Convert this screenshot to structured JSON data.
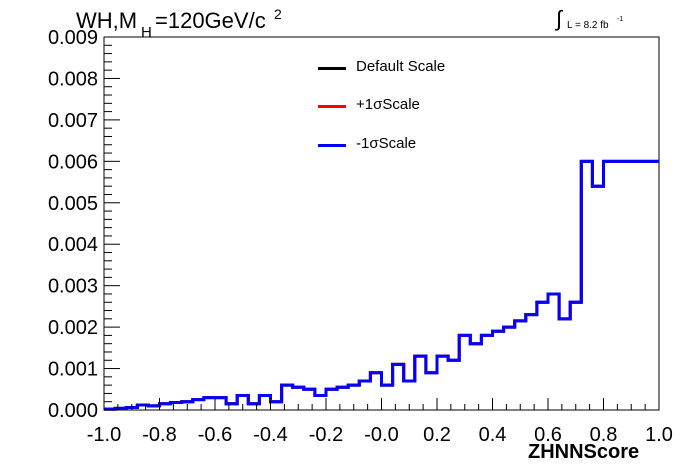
{
  "title": {
    "prefix": "WH,M",
    "subscript": "H",
    "rest": "=120GeV/c",
    "superscript": "2"
  },
  "luminosity": {
    "integral": "∫",
    "text": "L = 8.2 fb",
    "superscript": "-1"
  },
  "legend": [
    {
      "label": "Default Scale",
      "color": "#000000"
    },
    {
      "label": "+1σScale",
      "color": "#ff0000"
    },
    {
      "label": "-1σScale",
      "color": "#0000ff"
    }
  ],
  "chart_data": {
    "type": "line",
    "style": "step-histogram",
    "xlabel": "ZHNNScore",
    "ylabel": "",
    "xlim": [
      -1.0,
      1.0
    ],
    "ylim": [
      0,
      0.009
    ],
    "x_tick_labels": [
      "-1.0",
      "-0.8",
      "-0.6",
      "-0.4",
      "-0.2",
      "-0.0",
      "0.2",
      "0.4",
      "0.6",
      "0.8",
      "1.0"
    ],
    "y_tick_labels": [
      "0.000",
      "0.001",
      "0.002",
      "0.003",
      "0.004",
      "0.005",
      "0.006",
      "0.007",
      "0.008",
      "0.009"
    ],
    "x_ticks": [
      -1.0,
      -0.8,
      -0.6,
      -0.4,
      -0.2,
      0.0,
      0.2,
      0.4,
      0.6,
      0.8,
      1.0
    ],
    "y_ticks": [
      0,
      0.001,
      0.002,
      0.003,
      0.004,
      0.005,
      0.006,
      0.007,
      0.008,
      0.009
    ],
    "bin_edges": [
      -1.0,
      -0.96,
      -0.92,
      -0.88,
      -0.84,
      -0.8,
      -0.76,
      -0.72,
      -0.68,
      -0.64,
      -0.6,
      -0.56,
      -0.52,
      -0.48,
      -0.44,
      -0.4,
      -0.36,
      -0.32,
      -0.28,
      -0.24,
      -0.2,
      -0.16,
      -0.12,
      -0.08,
      -0.04,
      0.0,
      0.04,
      0.08,
      0.12,
      0.16,
      0.2,
      0.24,
      0.28,
      0.32,
      0.36,
      0.4,
      0.44,
      0.48,
      0.52,
      0.56,
      0.6,
      0.64,
      0.68,
      0.72,
      0.76,
      0.8,
      0.84,
      0.88,
      0.92,
      0.96,
      1.0
    ],
    "series": [
      {
        "name": "Default Scale",
        "values": [
          2e-05,
          4e-05,
          6e-05,
          0.00012,
          0.0001,
          0.00015,
          0.00018,
          0.0002,
          0.00025,
          0.0003,
          0.0003,
          0.00015,
          0.00035,
          0.00015,
          0.00035,
          0.0002,
          0.0006,
          0.00055,
          0.0005,
          0.00035,
          0.0005,
          0.00055,
          0.0006,
          0.0007,
          0.0009,
          0.0006,
          0.0011,
          0.0007,
          0.0013,
          0.0009,
          0.0013,
          0.0012,
          0.0018,
          0.0016,
          0.0018,
          0.0019,
          0.002,
          0.00215,
          0.0023,
          0.0026,
          0.0028,
          0.0022,
          0.0026,
          0.006,
          0.0054,
          0.006,
          0.006,
          0.006,
          0.006,
          0.006
        ]
      },
      {
        "name": "+1σScale",
        "values": [
          2e-05,
          4e-05,
          6e-05,
          0.00012,
          0.0001,
          0.00015,
          0.00018,
          0.0002,
          0.00025,
          0.0003,
          0.0003,
          0.00015,
          0.00035,
          0.00015,
          0.00035,
          0.0002,
          0.0006,
          0.00055,
          0.0005,
          0.00035,
          0.0005,
          0.00055,
          0.0006,
          0.0007,
          0.0009,
          0.0006,
          0.0011,
          0.0007,
          0.0013,
          0.0009,
          0.0013,
          0.0012,
          0.0018,
          0.0016,
          0.0018,
          0.0019,
          0.002,
          0.00215,
          0.0023,
          0.0026,
          0.0028,
          0.0022,
          0.0026,
          0.006,
          0.0054,
          0.006,
          0.006,
          0.006,
          0.006,
          0.006
        ]
      },
      {
        "name": "-1σScale",
        "values": [
          2e-05,
          4e-05,
          6e-05,
          0.00012,
          0.0001,
          0.00015,
          0.00018,
          0.0002,
          0.00025,
          0.0003,
          0.0003,
          0.00015,
          0.00035,
          0.00015,
          0.00035,
          0.0002,
          0.0006,
          0.00055,
          0.0005,
          0.00035,
          0.0005,
          0.00055,
          0.0006,
          0.0007,
          0.0009,
          0.0006,
          0.0011,
          0.0007,
          0.0013,
          0.0009,
          0.0013,
          0.0012,
          0.0018,
          0.0016,
          0.0018,
          0.0019,
          0.002,
          0.00215,
          0.0023,
          0.0026,
          0.0028,
          0.0022,
          0.0026,
          0.006,
          0.0054,
          0.006,
          0.006,
          0.006,
          0.006,
          0.006
        ]
      }
    ],
    "series_colors": [
      "#000000",
      "#ff0000",
      "#0000ff"
    ]
  }
}
